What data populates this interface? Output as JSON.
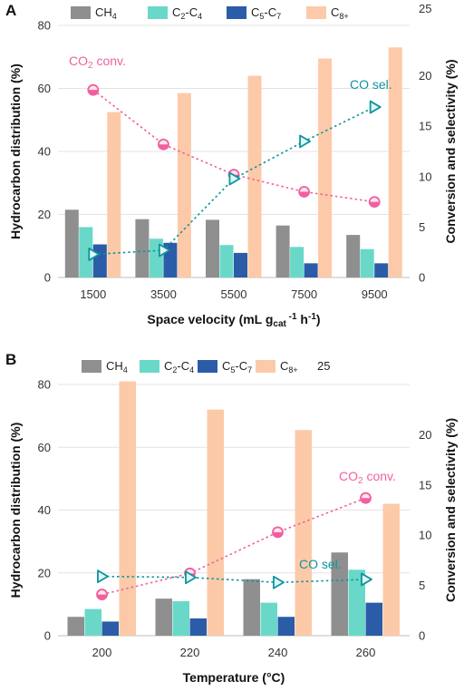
{
  "colors": {
    "CH4": "#8f8f8f",
    "C2C4": "#6ad8c9",
    "C5C7": "#2a5ca8",
    "C8": "#fccaa8",
    "co2": "#f0609e",
    "co": "#0c959e",
    "grid": "#e3e3e3"
  },
  "chart_data": [
    {
      "panel": "A",
      "type": "bar",
      "legend": [
        "CH₄",
        "C₂-C₄",
        "C₅-C₇",
        "C₈₊"
      ],
      "legend_extra": "25",
      "ylabel": "Hydrocarbon distribution (%)",
      "y2label": "Conversion and selectivity (%)",
      "xlabel": "Space velocity (mL g₍cat₎⁻¹ h⁻¹)",
      "xlabel_parts": {
        "pre": "Space velocity (mL g",
        "sub": "cat",
        "mid": " ",
        "sup1": "-1",
        "mid2": " h",
        "sup2": "-1",
        "post": ")"
      },
      "categories": [
        "1500",
        "3500",
        "5500",
        "7500",
        "9500"
      ],
      "ylim": [
        0,
        80
      ],
      "yticks": [
        0,
        20,
        40,
        60,
        80
      ],
      "y2lim": [
        0,
        25
      ],
      "y2ticks": [
        0,
        5,
        10,
        15,
        20
      ],
      "series": [
        {
          "name": "CH₄",
          "values": [
            21.5,
            18.5,
            18.3,
            16.5,
            13.5
          ]
        },
        {
          "name": "C₂-C₄",
          "values": [
            16,
            12.3,
            10.3,
            9.7,
            9
          ]
        },
        {
          "name": "C₅-C₇",
          "values": [
            10.5,
            11,
            7.8,
            4.5,
            4.5
          ]
        },
        {
          "name": "C₈₊",
          "values": [
            52.5,
            58.5,
            64,
            69.5,
            73
          ]
        }
      ],
      "lines": [
        {
          "name": "CO₂ conv.",
          "axis": "y2",
          "marker": "circle",
          "values": [
            18.6,
            13.2,
            10.2,
            8.5,
            7.5
          ]
        },
        {
          "name": "CO sel.",
          "axis": "y2",
          "marker": "triangle",
          "values": [
            2.3,
            2.7,
            9.8,
            13.5,
            16.9
          ]
        }
      ],
      "annotations": [
        {
          "text": "CO₂ conv.",
          "series": 0
        },
        {
          "text": "CO sel.",
          "series": 1
        }
      ]
    },
    {
      "panel": "B",
      "type": "bar",
      "legend": [
        "CH₄",
        "C₂-C₄",
        "C₅-C₇",
        "C₈₊"
      ],
      "legend_extra": "25",
      "ylabel": "Hydrocarbon distribution (%)",
      "y2label": "Conversion and selectivity (%)",
      "xlabel": "Temperature (°C)",
      "categories": [
        "200",
        "220",
        "240",
        "260"
      ],
      "ylim": [
        0,
        80
      ],
      "yticks": [
        0,
        20,
        40,
        60,
        80
      ],
      "y2lim": [
        0,
        25
      ],
      "y2ticks": [
        0,
        5,
        10,
        15,
        20
      ],
      "series": [
        {
          "name": "CH₄",
          "values": [
            6,
            11.8,
            18,
            26.5
          ]
        },
        {
          "name": "C₂-C₄",
          "values": [
            8.5,
            11,
            10.5,
            21
          ]
        },
        {
          "name": "C₅-C₇",
          "values": [
            4.5,
            5.5,
            6,
            10.5
          ]
        },
        {
          "name": "C₈₊",
          "values": [
            81,
            72,
            65.5,
            42
          ]
        }
      ],
      "lines": [
        {
          "name": "CO₂ conv.",
          "axis": "y2",
          "marker": "circle",
          "values": [
            4.1,
            6.2,
            10.3,
            13.7
          ]
        },
        {
          "name": "CO sel.",
          "axis": "y2",
          "marker": "triangle",
          "values": [
            5.9,
            5.8,
            5.3,
            5.6
          ]
        }
      ],
      "annotations": [
        {
          "text": "CO₂ conv.",
          "series": 0
        },
        {
          "text": "CO sel.",
          "series": 1
        }
      ]
    }
  ]
}
